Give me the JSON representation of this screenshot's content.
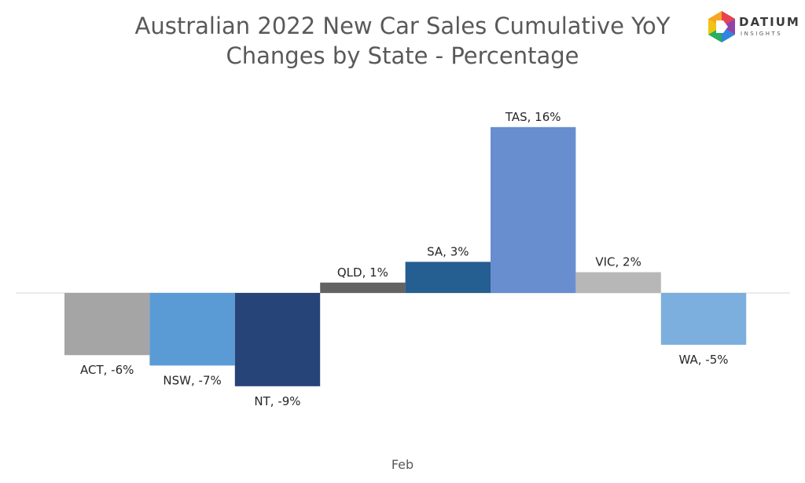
{
  "header": {
    "title_line1": "Australian 2022 New Car Sales Cumulative YoY",
    "title_line2": "Changes by State - Percentage"
  },
  "logo": {
    "word": "DATIUM",
    "sub": "INSIGHTS",
    "icon": "datium-logo-icon"
  },
  "chart_data": {
    "type": "bar",
    "title": "Australian 2022 New Car Sales Cumulative YoY Changes by State - Percentage",
    "xlabel": "Feb",
    "ylabel": "",
    "ylim": [
      -10,
      17
    ],
    "grid": false,
    "legend": "none",
    "categories": [
      "ACT",
      "NSW",
      "NT",
      "QLD",
      "SA",
      "TAS",
      "VIC",
      "WA"
    ],
    "values": [
      -6,
      -7,
      -9,
      1,
      3,
      16,
      2,
      -5
    ],
    "data_labels": [
      "ACT, -6%",
      "NSW, -7%",
      "NT, -9%",
      "QLD, 1%",
      "SA, 3%",
      "TAS, 16%",
      "VIC, 2%",
      "WA, -5%"
    ],
    "colors": [
      "#a5a5a5",
      "#5b9bd5",
      "#264478",
      "#636363",
      "#255e91",
      "#698ed0",
      "#b7b7b7",
      "#7cafdd"
    ]
  }
}
